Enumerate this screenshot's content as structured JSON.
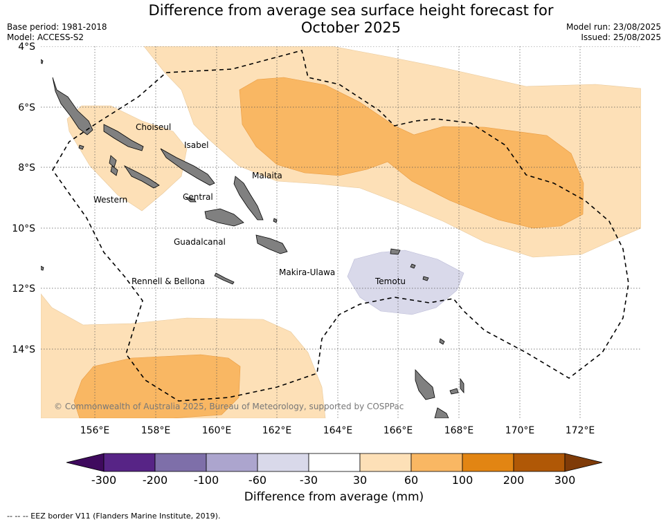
{
  "title_line1": "Difference from average sea surface height forecast for",
  "title_line2": "October 2025",
  "base_period": "Base period: 1981-2018",
  "model": "Model: ACCESS-S2",
  "model_run": "Model run: 23/08/2025",
  "issued": "Issued: 25/08/2025",
  "lat_labels": [
    "4°S",
    "6°S",
    "8°S",
    "10°S",
    "12°S",
    "14°S"
  ],
  "lon_labels": [
    "156°E",
    "158°E",
    "160°E",
    "162°E",
    "164°E",
    "166°E",
    "168°E",
    "170°E",
    "172°E"
  ],
  "provinces": [
    "Choiseul",
    "Isabel",
    "Malaita",
    "Western",
    "Central",
    "Guadalcanal",
    "Makira-Ulawa",
    "Rennell & Bellona",
    "Temotu"
  ],
  "copyright": "© Commonwealth of Australia 2025, Bureau of Meteorology, supported by COSPPac",
  "colorbar": {
    "ticks": [
      "-300",
      "-200",
      "-100",
      "-60",
      "-30",
      "30",
      "60",
      "100",
      "200",
      "300"
    ],
    "colors": [
      "#3f0a5e",
      "#572486",
      "#7e6fa9",
      "#aca5ce",
      "#d9d9ea",
      "#ffffff",
      "#fde0b7",
      "#f9b763",
      "#e28513",
      "#b05806",
      "#7f3b08"
    ],
    "label": "Difference from average (mm)"
  },
  "footnote": "--  --  -- EEZ border V11 (Flanders Marine Institute, 2019)."
}
